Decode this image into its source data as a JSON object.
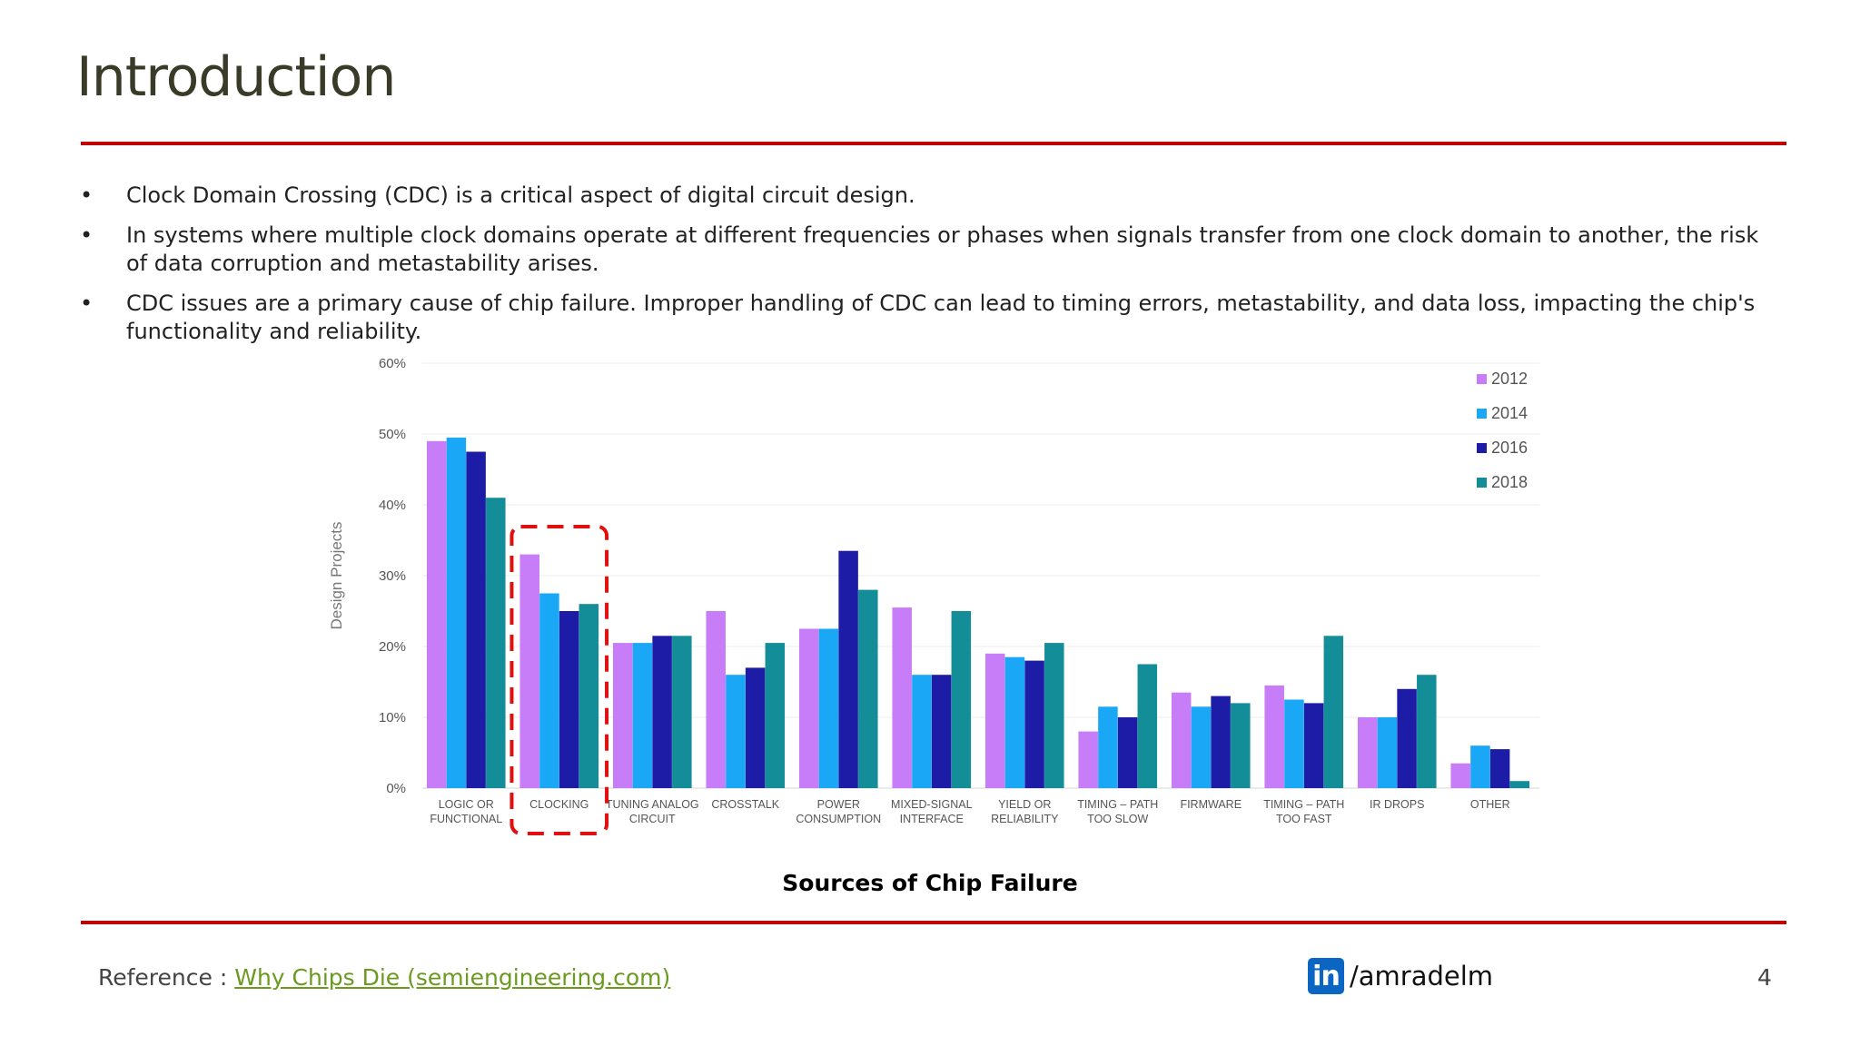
{
  "slide": {
    "title": "Introduction",
    "bullets": [
      "Clock Domain Crossing (CDC) is a critical aspect of digital circuit design.",
      "In systems where multiple clock domains operate at different frequencies or phases when signals transfer from one clock domain to another, the risk of data corruption and metastability arises.",
      "CDC issues are a primary cause of chip failure. Improper handling of CDC can lead to timing errors, metastability, and data loss, impacting the chip's functionality and reliability."
    ],
    "bullet_symbol": "•",
    "caption": "Sources of Chip Failure",
    "page_number": "4"
  },
  "footer": {
    "reference_label": "Reference : ",
    "reference_link_text": "Why Chips Die (semiengineering.com)",
    "linkedin_icon_text": "in",
    "linkedin_handle": "/amradelm"
  },
  "colors": {
    "accent_rule": "#c00000",
    "highlight_box": "#e01010",
    "series": [
      "#c77cf8",
      "#1aa7f5",
      "#1c1ca6",
      "#138d98"
    ]
  },
  "chart_data": {
    "type": "bar",
    "ylabel": "Design Projects",
    "ylim": [
      0,
      60
    ],
    "yticks": [
      "0%",
      "10%",
      "20%",
      "30%",
      "40%",
      "50%",
      "60%"
    ],
    "legend_position": "top-right",
    "highlighted_category": "CLOCKING",
    "categories": [
      [
        "LOGIC OR",
        "FUNCTIONAL"
      ],
      [
        "CLOCKING"
      ],
      [
        "TUNING ANALOG",
        "CIRCUIT"
      ],
      [
        "CROSSTALK"
      ],
      [
        "POWER",
        "CONSUMPTION"
      ],
      [
        "MIXED-SIGNAL",
        "INTERFACE"
      ],
      [
        "YIELD OR",
        "RELIABILITY"
      ],
      [
        "TIMING – PATH",
        "TOO SLOW"
      ],
      [
        "FIRMWARE"
      ],
      [
        "TIMING – PATH",
        "TOO FAST"
      ],
      [
        "IR DROPS"
      ],
      [
        "OTHER"
      ]
    ],
    "series": [
      {
        "name": "2012",
        "values": [
          49,
          33,
          20.5,
          25,
          22.5,
          25.5,
          19,
          8,
          13.5,
          14.5,
          10,
          3.5
        ]
      },
      {
        "name": "2014",
        "values": [
          49.5,
          27.5,
          20.5,
          16,
          22.5,
          16,
          18.5,
          11.5,
          11.5,
          12.5,
          10,
          6
        ]
      },
      {
        "name": "2016",
        "values": [
          47.5,
          25,
          21.5,
          17,
          33.5,
          16,
          18,
          10,
          13,
          12,
          14,
          5.5
        ]
      },
      {
        "name": "2018",
        "values": [
          41,
          26,
          21.5,
          20.5,
          28,
          25,
          20.5,
          17.5,
          12,
          21.5,
          16,
          1
        ]
      }
    ]
  }
}
